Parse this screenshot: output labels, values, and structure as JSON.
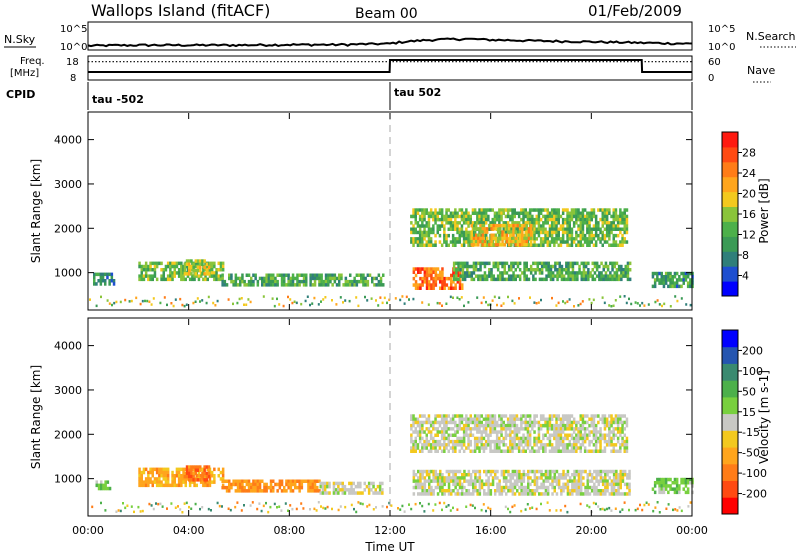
{
  "header": {
    "station": "Wallops Island (fitACF)",
    "beam": "Beam 00",
    "date": "01/Feb/2009"
  },
  "panels": {
    "nsky_label": "N.Sky",
    "nsearch_label": "N.Search",
    "freq_label_1": "Freq.",
    "freq_label_2": "[MHz]",
    "nave_label": "Nave",
    "cpid_label": "CPID",
    "nsky_ticks": [
      "10^5",
      "10^0"
    ],
    "nsearch_ticks": [
      "10^5",
      "10^0"
    ],
    "freq_ticks": [
      "18",
      "8"
    ],
    "nave_ticks": [
      "60",
      "0"
    ],
    "cpid_segments": [
      {
        "label": "tau -502",
        "start": "00:00",
        "end": "12:00"
      },
      {
        "label": "tau 502",
        "start": "12:00",
        "end": "24:00"
      }
    ]
  },
  "colorbars": {
    "power": {
      "label": "Power [dB]",
      "ticks": [
        "28",
        "24",
        "20",
        "16",
        "12",
        "8",
        "4"
      ],
      "colors": [
        "#0000ff",
        "#1e4fd0",
        "#2f7f7a",
        "#3a9a55",
        "#4cb04a",
        "#8ac43a",
        "#f3c91e",
        "#ffa51c",
        "#ff7c17",
        "#ff4a12",
        "#ff1a10"
      ]
    },
    "velocity": {
      "label": "Velocity [m s-1]",
      "ticks": [
        "200",
        "100",
        "50",
        "15",
        "-15",
        "-50",
        "-100",
        "-200"
      ],
      "colors": [
        "#ff0000",
        "#ff4a12",
        "#ff7c17",
        "#ffa51c",
        "#f3c91e",
        "#c8c8c4",
        "#78d03e",
        "#4cb04a",
        "#3a8a70",
        "#2555b0",
        "#0000ff"
      ]
    }
  },
  "chart_data": [
    {
      "type": "line",
      "name": "N.Sky / N.Search",
      "x": [
        "00:00",
        "02:00",
        "04:00",
        "06:00",
        "08:00",
        "10:00",
        "12:00",
        "13:00",
        "14:00",
        "15:00",
        "16:00",
        "18:00",
        "20:00",
        "22:00",
        "24:00"
      ],
      "y_scale": "log",
      "y_range": [
        1,
        100000
      ],
      "nsky": [
        3,
        4,
        4,
        4,
        5,
        5,
        8,
        30,
        60,
        80,
        50,
        30,
        20,
        12,
        8
      ]
    },
    {
      "type": "line",
      "name": "Freq / Nave",
      "x": [
        "00:00",
        "11:59",
        "12:00",
        "22:00",
        "22:01",
        "24:00"
      ],
      "freq_mhz": [
        11,
        11,
        17,
        17,
        11,
        11
      ],
      "freq_range": [
        8,
        18
      ],
      "nave_range": [
        0,
        60
      ],
      "nave_dotted": 49
    },
    {
      "type": "heatmap",
      "title": "Power",
      "xlabel": "Time UT",
      "ylabel": "Slant Range [km]",
      "x_range_hours": [
        0,
        24
      ],
      "x_ticks": [
        "00:00",
        "04:00",
        "08:00",
        "12:00",
        "16:00",
        "20:00",
        "00:00"
      ],
      "y_range_km": [
        180,
        4600
      ],
      "y_ticks": [
        1000,
        2000,
        3000,
        4000
      ],
      "colorbar_range_db": [
        0,
        32
      ],
      "echo_regions": [
        {
          "t0": 0.2,
          "t1": 1.0,
          "r0": 720,
          "r1": 1000,
          "value": 8
        },
        {
          "t0": 2.0,
          "t1": 5.4,
          "r0": 840,
          "r1": 1250,
          "value": 14
        },
        {
          "t0": 3.8,
          "t1": 4.8,
          "r0": 1000,
          "r1": 1300,
          "value": 18
        },
        {
          "t0": 5.3,
          "t1": 11.7,
          "r0": 700,
          "r1": 980,
          "value": 12
        },
        {
          "t0": 12.8,
          "t1": 21.4,
          "r0": 1650,
          "r1": 2450,
          "value": 14
        },
        {
          "t0": 15.2,
          "t1": 17.6,
          "r0": 1600,
          "r1": 2100,
          "value": 20
        },
        {
          "t0": 12.9,
          "t1": 14.9,
          "r0": 640,
          "r1": 1120,
          "value": 26
        },
        {
          "t0": 14.5,
          "t1": 21.5,
          "r0": 820,
          "r1": 1250,
          "value": 12
        },
        {
          "t0": 22.4,
          "t1": 24.0,
          "r0": 660,
          "r1": 1020,
          "value": 10
        }
      ]
    },
    {
      "type": "heatmap",
      "title": "Velocity",
      "xlabel": "Time UT",
      "ylabel": "Slant Range [km]",
      "x_range_hours": [
        0,
        24
      ],
      "x_ticks": [
        "00:00",
        "04:00",
        "08:00",
        "12:00",
        "16:00",
        "20:00",
        "00:00"
      ],
      "y_range_km": [
        180,
        4600
      ],
      "y_ticks": [
        1000,
        2000,
        3000,
        4000
      ],
      "colorbar_range_ms": [
        -200,
        200
      ],
      "echo_regions": [
        {
          "t0": 0.3,
          "t1": 0.9,
          "r0": 760,
          "r1": 960,
          "value": 40
        },
        {
          "t0": 2.0,
          "t1": 5.4,
          "r0": 840,
          "r1": 1250,
          "value": -70
        },
        {
          "t0": 3.8,
          "t1": 4.8,
          "r0": 1000,
          "r1": 1300,
          "value": -110
        },
        {
          "t0": 5.3,
          "t1": 9.2,
          "r0": 700,
          "r1": 980,
          "value": -85
        },
        {
          "t0": 9.2,
          "t1": 11.7,
          "r0": 700,
          "r1": 930,
          "value": 0
        },
        {
          "t0": 12.8,
          "t1": 21.4,
          "r0": 1650,
          "r1": 2450,
          "value": 0
        },
        {
          "t0": 12.9,
          "t1": 21.5,
          "r0": 640,
          "r1": 1200,
          "value": 0
        },
        {
          "t0": 22.4,
          "t1": 24.0,
          "r0": 660,
          "r1": 1020,
          "value": 40
        }
      ]
    }
  ]
}
